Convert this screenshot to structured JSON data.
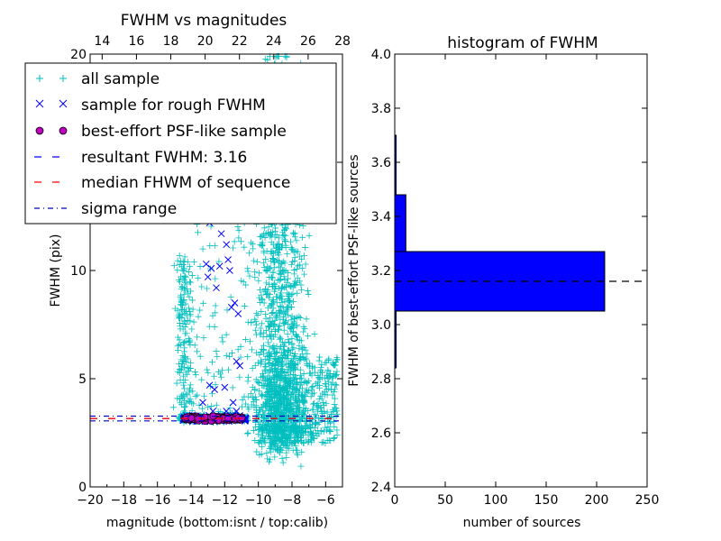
{
  "chart_data": [
    {
      "type": "scatter",
      "title": "FWHM vs magnitudes",
      "xlabel": "magnitude (bottom:isnt / top:calib)",
      "ylabel": "FWHM (pix)",
      "xlim": [
        -20,
        -5
      ],
      "ylim": [
        0,
        20
      ],
      "x_ticks": [
        "−20",
        "−18",
        "−16",
        "−14",
        "−12",
        "−10",
        "−8",
        "−6"
      ],
      "y_ticks": [
        "0",
        "5",
        "10",
        "15",
        "20"
      ],
      "top_xlim": [
        13.3,
        28
      ],
      "top_x_ticks": [
        "14",
        "16",
        "18",
        "20",
        "22",
        "24",
        "26",
        "28"
      ],
      "legend_position": "upper-left",
      "legend": [
        {
          "label": "all sample",
          "marker": "plus",
          "color": "#00bfbf"
        },
        {
          "label": "sample for rough FWHM",
          "marker": "x",
          "color": "#0000ff"
        },
        {
          "label": "best-effort PSF-like sample",
          "marker": "circle",
          "color": "#bf00bf"
        },
        {
          "label": "resultant FWHM: 3.16",
          "marker": "dashed-line",
          "color": "#0000ff"
        },
        {
          "label": "median FHWM of sequence",
          "marker": "dashed-line",
          "color": "#ff0000"
        },
        {
          "label": "sigma range",
          "marker": "dashdot-line",
          "color": "#0000bf"
        }
      ],
      "series": [
        {
          "name": "sample for rough FWHM",
          "points": [
            [
              -12.9,
              12.2
            ],
            [
              -12.2,
              11.7
            ],
            [
              -11.9,
              11.2
            ],
            [
              -13.1,
              10.3
            ],
            [
              -12.8,
              10.1
            ],
            [
              -12.3,
              10.2
            ],
            [
              -11.8,
              10.5
            ],
            [
              -11.7,
              10.0
            ],
            [
              -13.0,
              9.7
            ],
            [
              -12.5,
              9.2
            ],
            [
              -11.6,
              8.3
            ],
            [
              -11.4,
              8.5
            ],
            [
              -11.2,
              8.0
            ],
            [
              -11.3,
              5.8
            ],
            [
              -11.1,
              5.6
            ],
            [
              -12.9,
              4.7
            ],
            [
              -12.6,
              4.5
            ],
            [
              -12.0,
              4.6
            ],
            [
              -13.3,
              3.9
            ],
            [
              -11.5,
              3.9
            ],
            [
              -12.7,
              3.5
            ],
            [
              -11.9,
              3.5
            ],
            [
              -11.3,
              3.5
            ],
            [
              -12.2,
              3.3
            ],
            [
              -11.1,
              3.3
            ]
          ]
        }
      ],
      "hlines": [
        {
          "name": "resultant FWHM: 3.16",
          "y": 3.16,
          "color": "#0000ff",
          "style": "dashed"
        },
        {
          "name": "median FHWM of sequence",
          "y": 3.16,
          "color": "#ff0000",
          "style": "dashed"
        },
        {
          "name": "sigma range",
          "y": 3.27,
          "color": "#0000bf",
          "style": "dashdot"
        },
        {
          "name": "sigma range",
          "y": 3.05,
          "color": "#0000bf",
          "style": "dashdot"
        }
      ]
    },
    {
      "type": "bar",
      "orientation": "horizontal",
      "title": "histogram of FWHM",
      "xlabel": "number of sources",
      "ylabel": "FWHM of best-effort PSF-like sources",
      "xlim": [
        0,
        250
      ],
      "ylim": [
        2.4,
        4.0
      ],
      "x_ticks": [
        "0",
        "50",
        "100",
        "150",
        "200",
        "250"
      ],
      "y_ticks": [
        "2.4",
        "2.6",
        "2.8",
        "3.0",
        "3.2",
        "3.4",
        "3.6",
        "3.8",
        "4.0"
      ],
      "bars": [
        {
          "from": 2.84,
          "to": 3.05,
          "count": 1
        },
        {
          "from": 3.05,
          "to": 3.27,
          "count": 208
        },
        {
          "from": 3.27,
          "to": 3.48,
          "count": 11
        },
        {
          "from": 3.48,
          "to": 3.7,
          "count": 1
        }
      ],
      "reference_line": {
        "y": 3.16,
        "color": "#000000",
        "style": "dashed"
      }
    }
  ]
}
